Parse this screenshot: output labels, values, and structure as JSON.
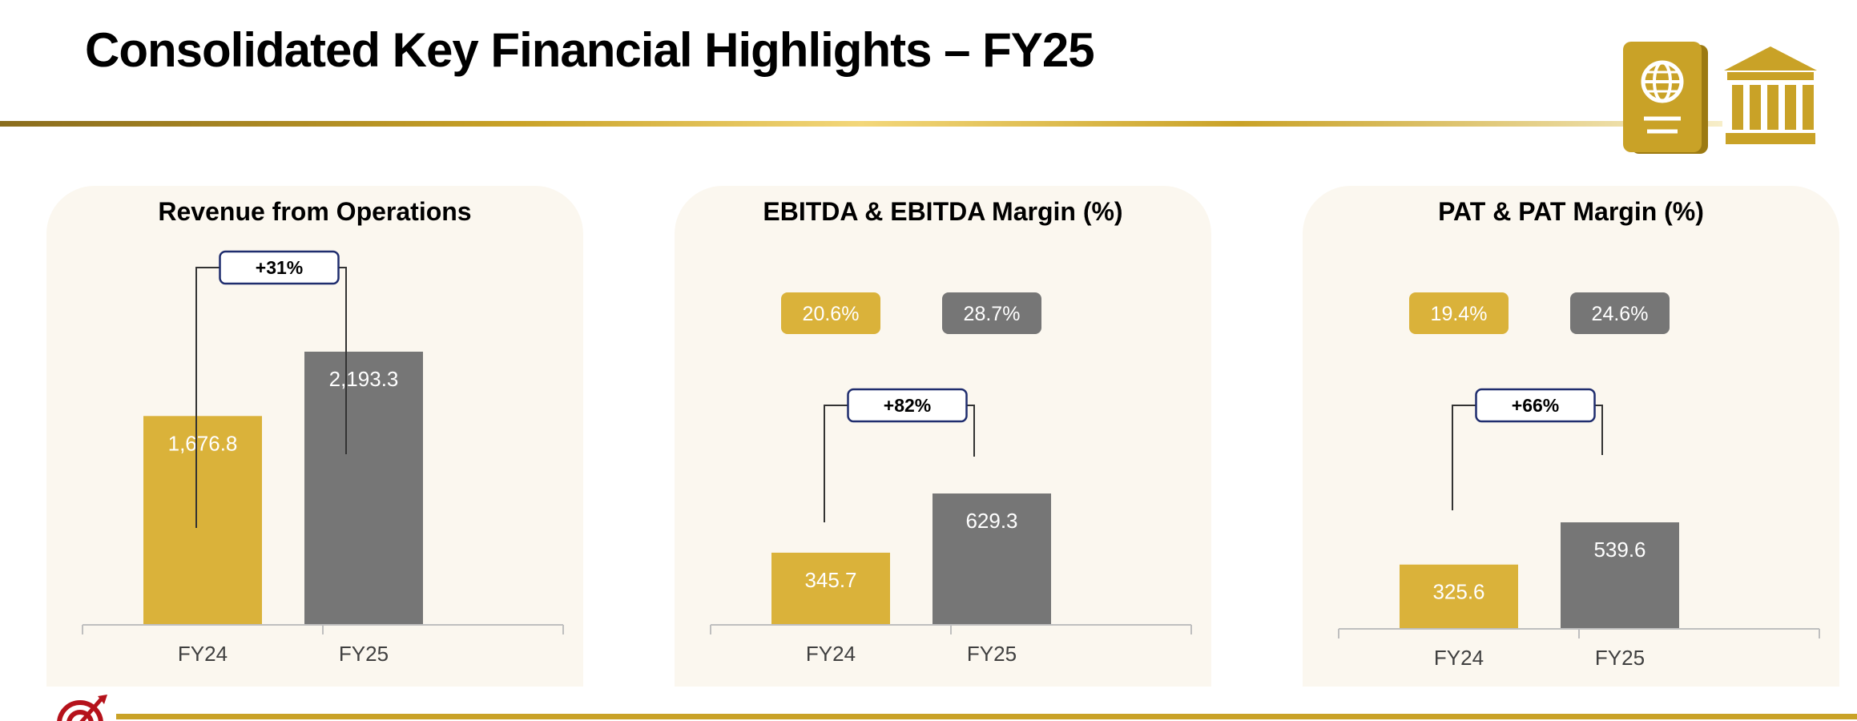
{
  "header": {
    "title": "Consolidated Key Financial Highlights – FY25"
  },
  "icons": {
    "passport": "passport-icon",
    "bank": "bank-building-icon",
    "target": "target-logo-icon"
  },
  "colors": {
    "gold": "#DAB23A",
    "grey": "#767676",
    "navy": "#1F2D6E",
    "panel": "#FBF7EF",
    "rule": "#C9A227"
  },
  "chart_data": [
    {
      "type": "bar",
      "title": "Revenue from Operations",
      "categories": [
        "FY24",
        "FY25"
      ],
      "values": [
        1676.8,
        2193.3
      ],
      "value_labels": [
        "1,676.8",
        "2,193.3"
      ],
      "growth_label": "+31%",
      "margin_labels": [],
      "bar_colors": [
        "#DAB23A",
        "#767676"
      ]
    },
    {
      "type": "bar",
      "title": "EBITDA & EBITDA Margin (%)",
      "categories": [
        "FY24",
        "FY25"
      ],
      "values": [
        345.7,
        629.3
      ],
      "value_labels": [
        "345.7",
        "629.3"
      ],
      "growth_label": "+82%",
      "margin_labels": [
        "20.6%",
        "28.7%"
      ],
      "bar_colors": [
        "#DAB23A",
        "#767676"
      ]
    },
    {
      "type": "bar",
      "title": "PAT & PAT Margin (%)",
      "categories": [
        "FY24",
        "FY25"
      ],
      "values": [
        325.6,
        539.6
      ],
      "value_labels": [
        "325.6",
        "539.6"
      ],
      "growth_label": "+66%",
      "margin_labels": [
        "19.4%",
        "24.6%"
      ],
      "bar_colors": [
        "#DAB23A",
        "#767676"
      ]
    }
  ]
}
